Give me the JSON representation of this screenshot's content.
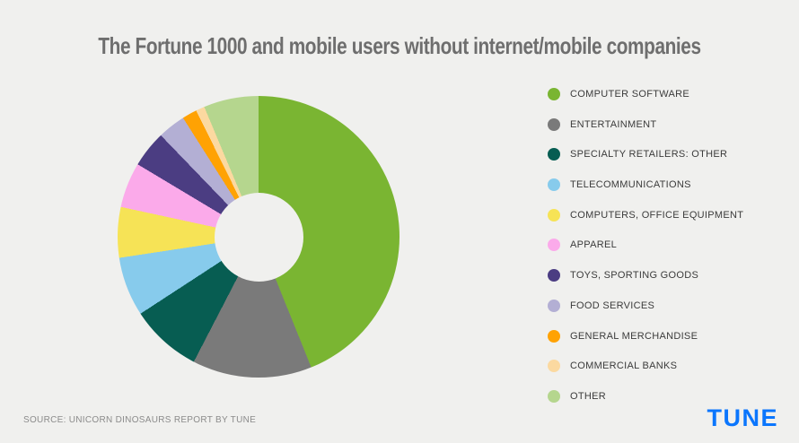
{
  "background_color": "#f0f0ee",
  "title": {
    "text": "The Fortune 1000 and mobile users without internet/mobile companies",
    "color": "#6e6e6e"
  },
  "source": {
    "text": "SOURCE: UNICORN DINOSAURS REPORT BY TUNE"
  },
  "brand": {
    "logo_text": "TUNE",
    "color": "#0b76fd"
  },
  "chart_data": {
    "type": "pie",
    "subtype": "donut",
    "title": "The Fortune 1000 and mobile users without internet/mobile companies",
    "start_angle_deg": 0,
    "direction": "clockwise",
    "inner_radius_ratio": 0.315,
    "legend_position": "right",
    "data_labels_shown": false,
    "values_unit": "% of total (estimated from arc angles)",
    "categories": [
      "COMPUTER SOFTWARE",
      "ENTERTAINMENT",
      "SPECIALTY RETAILERS: OTHER",
      "TELECOMMUNICATIONS",
      "COMPUTERS, OFFICE EQUIPMENT",
      "APPAREL",
      "TOYS, SPORTING GOODS",
      "FOOD SERVICES",
      "GENERAL MERCHANDISE",
      "COMMERCIAL BANKS",
      "OTHER"
    ],
    "values": [
      43.9,
      13.7,
      8.2,
      6.8,
      5.8,
      5.2,
      4.2,
      3.2,
      1.7,
      1.0,
      6.3
    ],
    "colors": [
      "#7ab532",
      "#7a7a7a",
      "#075d52",
      "#87cbec",
      "#f6e356",
      "#fbaaea",
      "#4b3d82",
      "#b3afd4",
      "#ffa203",
      "#fbd9a0",
      "#b5d68e"
    ]
  }
}
